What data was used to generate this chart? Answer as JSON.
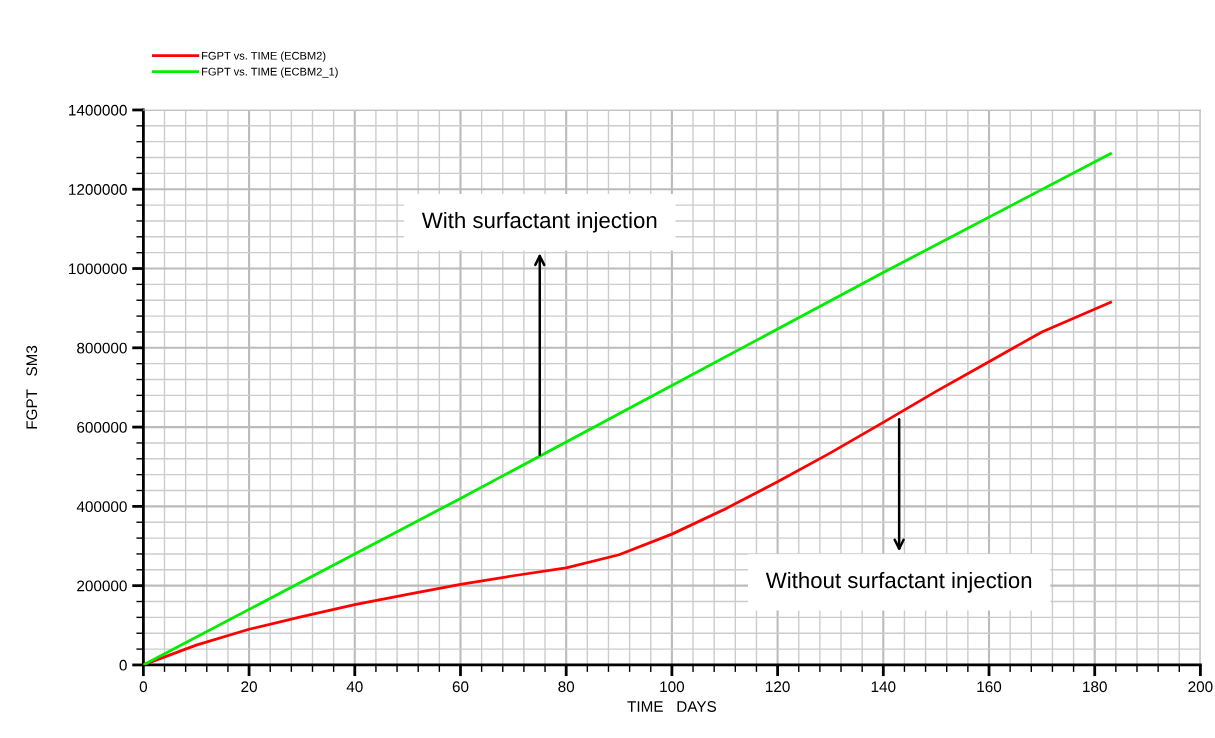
{
  "chart_data": {
    "type": "line",
    "xlabel": "TIME   DAYS",
    "ylabel": "FGPT   SM3",
    "xlim": [
      0,
      200
    ],
    "xticks": [
      0,
      20,
      40,
      60,
      80,
      100,
      120,
      140,
      160,
      180,
      200
    ],
    "ylim": [
      0,
      1400000
    ],
    "yticks": [
      0,
      200000,
      400000,
      600000,
      800000,
      1000000,
      1200000,
      1400000
    ],
    "grid": true,
    "legend": "top left",
    "marker": "none",
    "line_style": "solid",
    "series": [
      {
        "name": "FGPT vs. TIME (ECBM2)",
        "color": "#ff0000",
        "x": [
          0,
          10,
          20,
          30,
          40,
          50,
          60,
          70,
          80,
          90,
          100,
          110,
          120,
          130,
          140,
          150,
          160,
          170,
          183
        ],
        "values": [
          0,
          50000,
          90000,
          122000,
          152000,
          178000,
          203000,
          225000,
          245000,
          278000,
          330000,
          393000,
          462000,
          535000,
          612000,
          690000,
          765000,
          840000,
          915000
        ]
      },
      {
        "name": "FGPT vs. TIME (ECBM2_1)",
        "color": "#00ee00",
        "x": [
          0,
          60,
          100,
          140,
          183
        ],
        "values": [
          0,
          420000,
          705000,
          990000,
          1290000
        ]
      }
    ],
    "annotations": [
      {
        "text": "With surfactant injection",
        "x": 75,
        "y": 530000
      },
      {
        "text": "Without surfactant injection",
        "x": 143,
        "y": 620000
      }
    ]
  }
}
